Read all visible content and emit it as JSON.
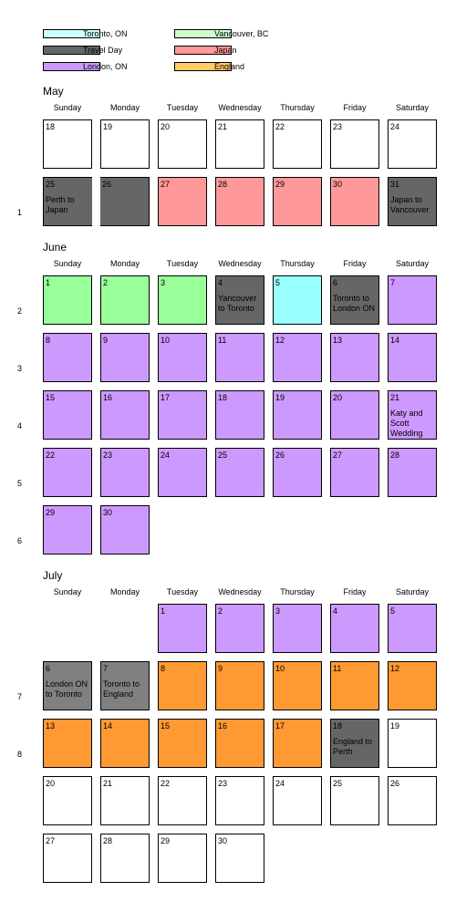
{
  "colors": {
    "Toronto": "#99ffff",
    "Travel": "#666666",
    "TravelLight": "#808080",
    "London": "#cc99ff",
    "Vancouver": "#99ff99",
    "Japan": "#ff9999",
    "England": "#ff9933",
    "Empty": "#ffffff"
  },
  "legend": [
    {
      "label": "Toronto, ON",
      "color": "#ccffff",
      "col": 0,
      "row": 0
    },
    {
      "label": "Travel Day",
      "color": "#666666",
      "col": 0,
      "row": 1
    },
    {
      "label": "London, ON",
      "color": "#cc99ff",
      "col": 0,
      "row": 2
    },
    {
      "label": "Vancouver, BC",
      "color": "#ccffcc",
      "col": 1,
      "row": 0
    },
    {
      "label": "Japan",
      "color": "#ff9999",
      "col": 1,
      "row": 1
    },
    {
      "label": "England",
      "color": "#ffcc66",
      "col": 1,
      "row": 2
    }
  ],
  "daynames": [
    "Sunday",
    "Monday",
    "Tuesday",
    "Wednesday",
    "Thursday",
    "Friday",
    "Saturday"
  ],
  "months": [
    {
      "name": "May",
      "weeks": [
        {
          "week": "",
          "days": [
            {
              "col": 0,
              "n": "18",
              "c": "Empty"
            },
            {
              "col": 1,
              "n": "19",
              "c": "Empty"
            },
            {
              "col": 2,
              "n": "20",
              "c": "Empty"
            },
            {
              "col": 3,
              "n": "21",
              "c": "Empty"
            },
            {
              "col": 4,
              "n": "22",
              "c": "Empty"
            },
            {
              "col": 5,
              "n": "23",
              "c": "Empty"
            },
            {
              "col": 6,
              "n": "24",
              "c": "Empty"
            }
          ]
        },
        {
          "week": "1",
          "days": [
            {
              "col": 0,
              "n": "25",
              "c": "Travel",
              "note": "Perth to Japan",
              "id": "travel-25"
            },
            {
              "col": 1,
              "n": "26",
              "c": "Travel",
              "id": "travel-26"
            },
            {
              "col": 2,
              "n": "27",
              "c": "Japan"
            },
            {
              "col": 3,
              "n": "28",
              "c": "Japan"
            },
            {
              "col": 4,
              "n": "29",
              "c": "Japan"
            },
            {
              "col": 5,
              "n": "30",
              "c": "Japan"
            },
            {
              "col": 6,
              "n": "31",
              "c": "Travel",
              "note": "Japan to Vancouver"
            }
          ]
        }
      ]
    },
    {
      "name": "June",
      "weeks": [
        {
          "week": "2",
          "days": [
            {
              "col": 0,
              "n": "1",
              "c": "Vancouver"
            },
            {
              "col": 1,
              "n": "2",
              "c": "Vancouver"
            },
            {
              "col": 2,
              "n": "3",
              "c": "Vancouver"
            },
            {
              "col": 3,
              "n": "4",
              "c": "Travel",
              "note": "Yancouver to Toronto"
            },
            {
              "col": 4,
              "n": "5",
              "c": "Toronto"
            },
            {
              "col": 5,
              "n": "6",
              "c": "Travel",
              "note": "Toronto to London ON"
            },
            {
              "col": 6,
              "n": "7",
              "c": "London"
            }
          ]
        },
        {
          "week": "3",
          "days": [
            {
              "col": 0,
              "n": "8",
              "c": "London"
            },
            {
              "col": 1,
              "n": "9",
              "c": "London"
            },
            {
              "col": 2,
              "n": "10",
              "c": "London"
            },
            {
              "col": 3,
              "n": "11",
              "c": "London"
            },
            {
              "col": 4,
              "n": "12",
              "c": "London"
            },
            {
              "col": 5,
              "n": "13",
              "c": "London"
            },
            {
              "col": 6,
              "n": "14",
              "c": "London"
            }
          ]
        },
        {
          "week": "4",
          "days": [
            {
              "col": 0,
              "n": "15",
              "c": "London"
            },
            {
              "col": 1,
              "n": "16",
              "c": "London"
            },
            {
              "col": 2,
              "n": "17",
              "c": "London"
            },
            {
              "col": 3,
              "n": "18",
              "c": "London"
            },
            {
              "col": 4,
              "n": "19",
              "c": "London"
            },
            {
              "col": 5,
              "n": "20",
              "c": "London"
            },
            {
              "col": 6,
              "n": "21",
              "c": "London",
              "note": "Katy and Scott Wedding"
            }
          ]
        },
        {
          "week": "5",
          "days": [
            {
              "col": 0,
              "n": "22",
              "c": "London"
            },
            {
              "col": 1,
              "n": "23",
              "c": "London"
            },
            {
              "col": 2,
              "n": "24",
              "c": "London"
            },
            {
              "col": 3,
              "n": "25",
              "c": "London"
            },
            {
              "col": 4,
              "n": "26",
              "c": "London"
            },
            {
              "col": 5,
              "n": "27",
              "c": "London"
            },
            {
              "col": 6,
              "n": "28",
              "c": "London"
            }
          ]
        },
        {
          "week": "6",
          "days": [
            {
              "col": 0,
              "n": "29",
              "c": "London"
            },
            {
              "col": 1,
              "n": "30",
              "c": "London"
            }
          ]
        }
      ]
    },
    {
      "name": "July",
      "weeks": [
        {
          "week": "",
          "days": [
            {
              "col": 2,
              "n": "1",
              "c": "London"
            },
            {
              "col": 3,
              "n": "2",
              "c": "London"
            },
            {
              "col": 4,
              "n": "3",
              "c": "London"
            },
            {
              "col": 5,
              "n": "4",
              "c": "London"
            },
            {
              "col": 6,
              "n": "5",
              "c": "London"
            }
          ]
        },
        {
          "week": "7",
          "days": [
            {
              "col": 0,
              "n": "6",
              "c": "TravelLight",
              "note": "London ON to Toronto"
            },
            {
              "col": 1,
              "n": "7",
              "c": "TravelLight",
              "note": "Toronto to England"
            },
            {
              "col": 2,
              "n": "8",
              "c": "England"
            },
            {
              "col": 3,
              "n": "9",
              "c": "England"
            },
            {
              "col": 4,
              "n": "10",
              "c": "England"
            },
            {
              "col": 5,
              "n": "11",
              "c": "England"
            },
            {
              "col": 6,
              "n": "12",
              "c": "England"
            }
          ]
        },
        {
          "week": "8",
          "days": [
            {
              "col": 0,
              "n": "13",
              "c": "England"
            },
            {
              "col": 1,
              "n": "14",
              "c": "England"
            },
            {
              "col": 2,
              "n": "15",
              "c": "England"
            },
            {
              "col": 3,
              "n": "16",
              "c": "England"
            },
            {
              "col": 4,
              "n": "17",
              "c": "England"
            },
            {
              "col": 5,
              "n": "18",
              "c": "Travel",
              "note": "England to Perth"
            },
            {
              "col": 6,
              "n": "19",
              "c": "Empty"
            }
          ]
        },
        {
          "week": "",
          "days": [
            {
              "col": 0,
              "n": "20",
              "c": "Empty"
            },
            {
              "col": 1,
              "n": "21",
              "c": "Empty"
            },
            {
              "col": 2,
              "n": "22",
              "c": "Empty"
            },
            {
              "col": 3,
              "n": "23",
              "c": "Empty"
            },
            {
              "col": 4,
              "n": "24",
              "c": "Empty"
            },
            {
              "col": 5,
              "n": "25",
              "c": "Empty"
            },
            {
              "col": 6,
              "n": "26",
              "c": "Empty"
            }
          ]
        },
        {
          "week": "",
          "days": [
            {
              "col": 0,
              "n": "27",
              "c": "Empty"
            },
            {
              "col": 1,
              "n": "28",
              "c": "Empty"
            },
            {
              "col": 2,
              "n": "29",
              "c": "Empty"
            },
            {
              "col": 3,
              "n": "30",
              "c": "Empty"
            }
          ]
        }
      ]
    }
  ]
}
